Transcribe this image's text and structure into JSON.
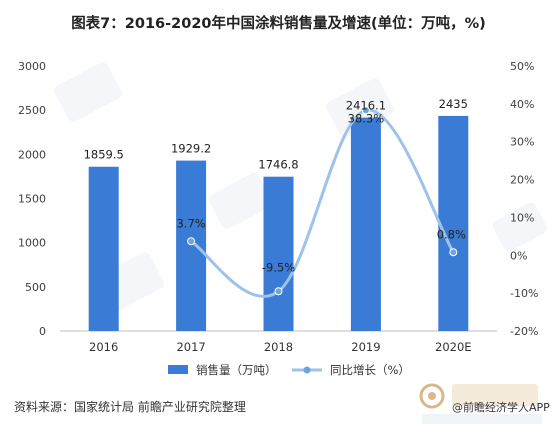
{
  "title": "图表7：2016-2020年中国涂料销售量及增速(单位：万吨，%)",
  "source": "资料来源：国家统计局 前瞻产业研究院整理",
  "watermark_app": "@前瞻经济学人APP",
  "colors": {
    "bar": "#3a7bd5",
    "line": "#9dc3ea",
    "line_marker": "#6fa4dc",
    "grid": "#e3e3e3"
  },
  "chart_data": {
    "type": "bar",
    "categories": [
      "2016",
      "2017",
      "2018",
      "2019",
      "2020E"
    ],
    "series": [
      {
        "name": "销售量（万吨）",
        "type": "bar",
        "axis": "left",
        "values": [
          1859.5,
          1929.2,
          1746.8,
          2416.1,
          2435
        ],
        "labels": [
          "1859.5",
          "1929.2",
          "1746.8",
          "2416.1",
          "2435"
        ]
      },
      {
        "name": "同比增长（%）",
        "type": "line",
        "axis": "right",
        "smooth": true,
        "values": [
          null,
          3.7,
          -9.5,
          38.3,
          0.8
        ],
        "labels": [
          "",
          "3.7%",
          "-9.5%",
          "38.3%",
          "0.8%"
        ]
      }
    ],
    "ylim_left": [
      0,
      3000
    ],
    "yticks_left": [
      "0",
      "500",
      "1000",
      "1500",
      "2000",
      "2500",
      "3000"
    ],
    "ylim_right": [
      -20,
      50
    ],
    "yticks_right": [
      "-20%",
      "-10%",
      "0%",
      "10%",
      "20%",
      "30%",
      "40%",
      "50%"
    ],
    "grid": false,
    "legend": "bottom"
  }
}
